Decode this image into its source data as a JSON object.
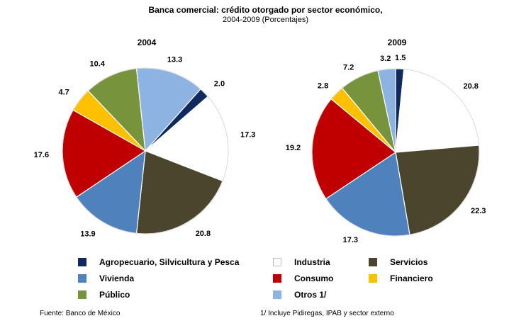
{
  "title": "Banca comercial: crédito otorgado por sector económico,",
  "subtitle": "2004-2009 (Porcentajes)",
  "source": "Fuente: Banco de México",
  "footnote": "1/ Incluye Pidiregas, IPAB y sector externo",
  "legend": [
    {
      "label": "Agropecuario, Silvicultura y Pesca",
      "color": "#0e2a5e"
    },
    {
      "label": "Industria",
      "color": "#ffffff"
    },
    {
      "label": "Servicios",
      "color": "#4b452e"
    },
    {
      "label": "Vivienda",
      "color": "#4f81bd"
    },
    {
      "label": "Consumo",
      "color": "#c00000"
    },
    {
      "label": "Financiero",
      "color": "#ffc000"
    },
    {
      "label": "Público",
      "color": "#77933c"
    },
    {
      "label": "Otros 1/",
      "color": "#8db3e2"
    }
  ],
  "chart_data": [
    {
      "type": "pie",
      "title": "2004",
      "slices": [
        {
          "label": "Agropecuario, Silvicultura y Pesca",
          "value": 2.0,
          "color": "#0e2a5e"
        },
        {
          "label": "Industria",
          "value": 17.3,
          "color": "#ffffff"
        },
        {
          "label": "Servicios",
          "value": 20.8,
          "color": "#4b452e"
        },
        {
          "label": "Vivienda",
          "value": 13.9,
          "color": "#4f81bd"
        },
        {
          "label": "Consumo",
          "value": 17.6,
          "color": "#c00000"
        },
        {
          "label": "Financiero",
          "value": 4.7,
          "color": "#ffc000"
        },
        {
          "label": "Público",
          "value": 10.4,
          "color": "#77933c"
        },
        {
          "label": "Otros 1/",
          "value": 13.3,
          "color": "#8db3e2"
        }
      ]
    },
    {
      "type": "pie",
      "title": "2009",
      "slices": [
        {
          "label": "Agropecuario, Silvicultura y Pesca",
          "value": 1.5,
          "color": "#0e2a5e"
        },
        {
          "label": "Industria",
          "value": 20.8,
          "color": "#ffffff"
        },
        {
          "label": "Servicios",
          "value": 22.3,
          "color": "#4b452e"
        },
        {
          "label": "Vivienda",
          "value": 17.3,
          "color": "#4f81bd"
        },
        {
          "label": "Consumo",
          "value": 19.2,
          "color": "#c00000"
        },
        {
          "label": "Financiero",
          "value": 2.8,
          "color": "#ffc000"
        },
        {
          "label": "Público",
          "value": 7.2,
          "color": "#77933c"
        },
        {
          "label": "Otros 1/",
          "value": 3.2,
          "color": "#8db3e2"
        }
      ]
    }
  ]
}
